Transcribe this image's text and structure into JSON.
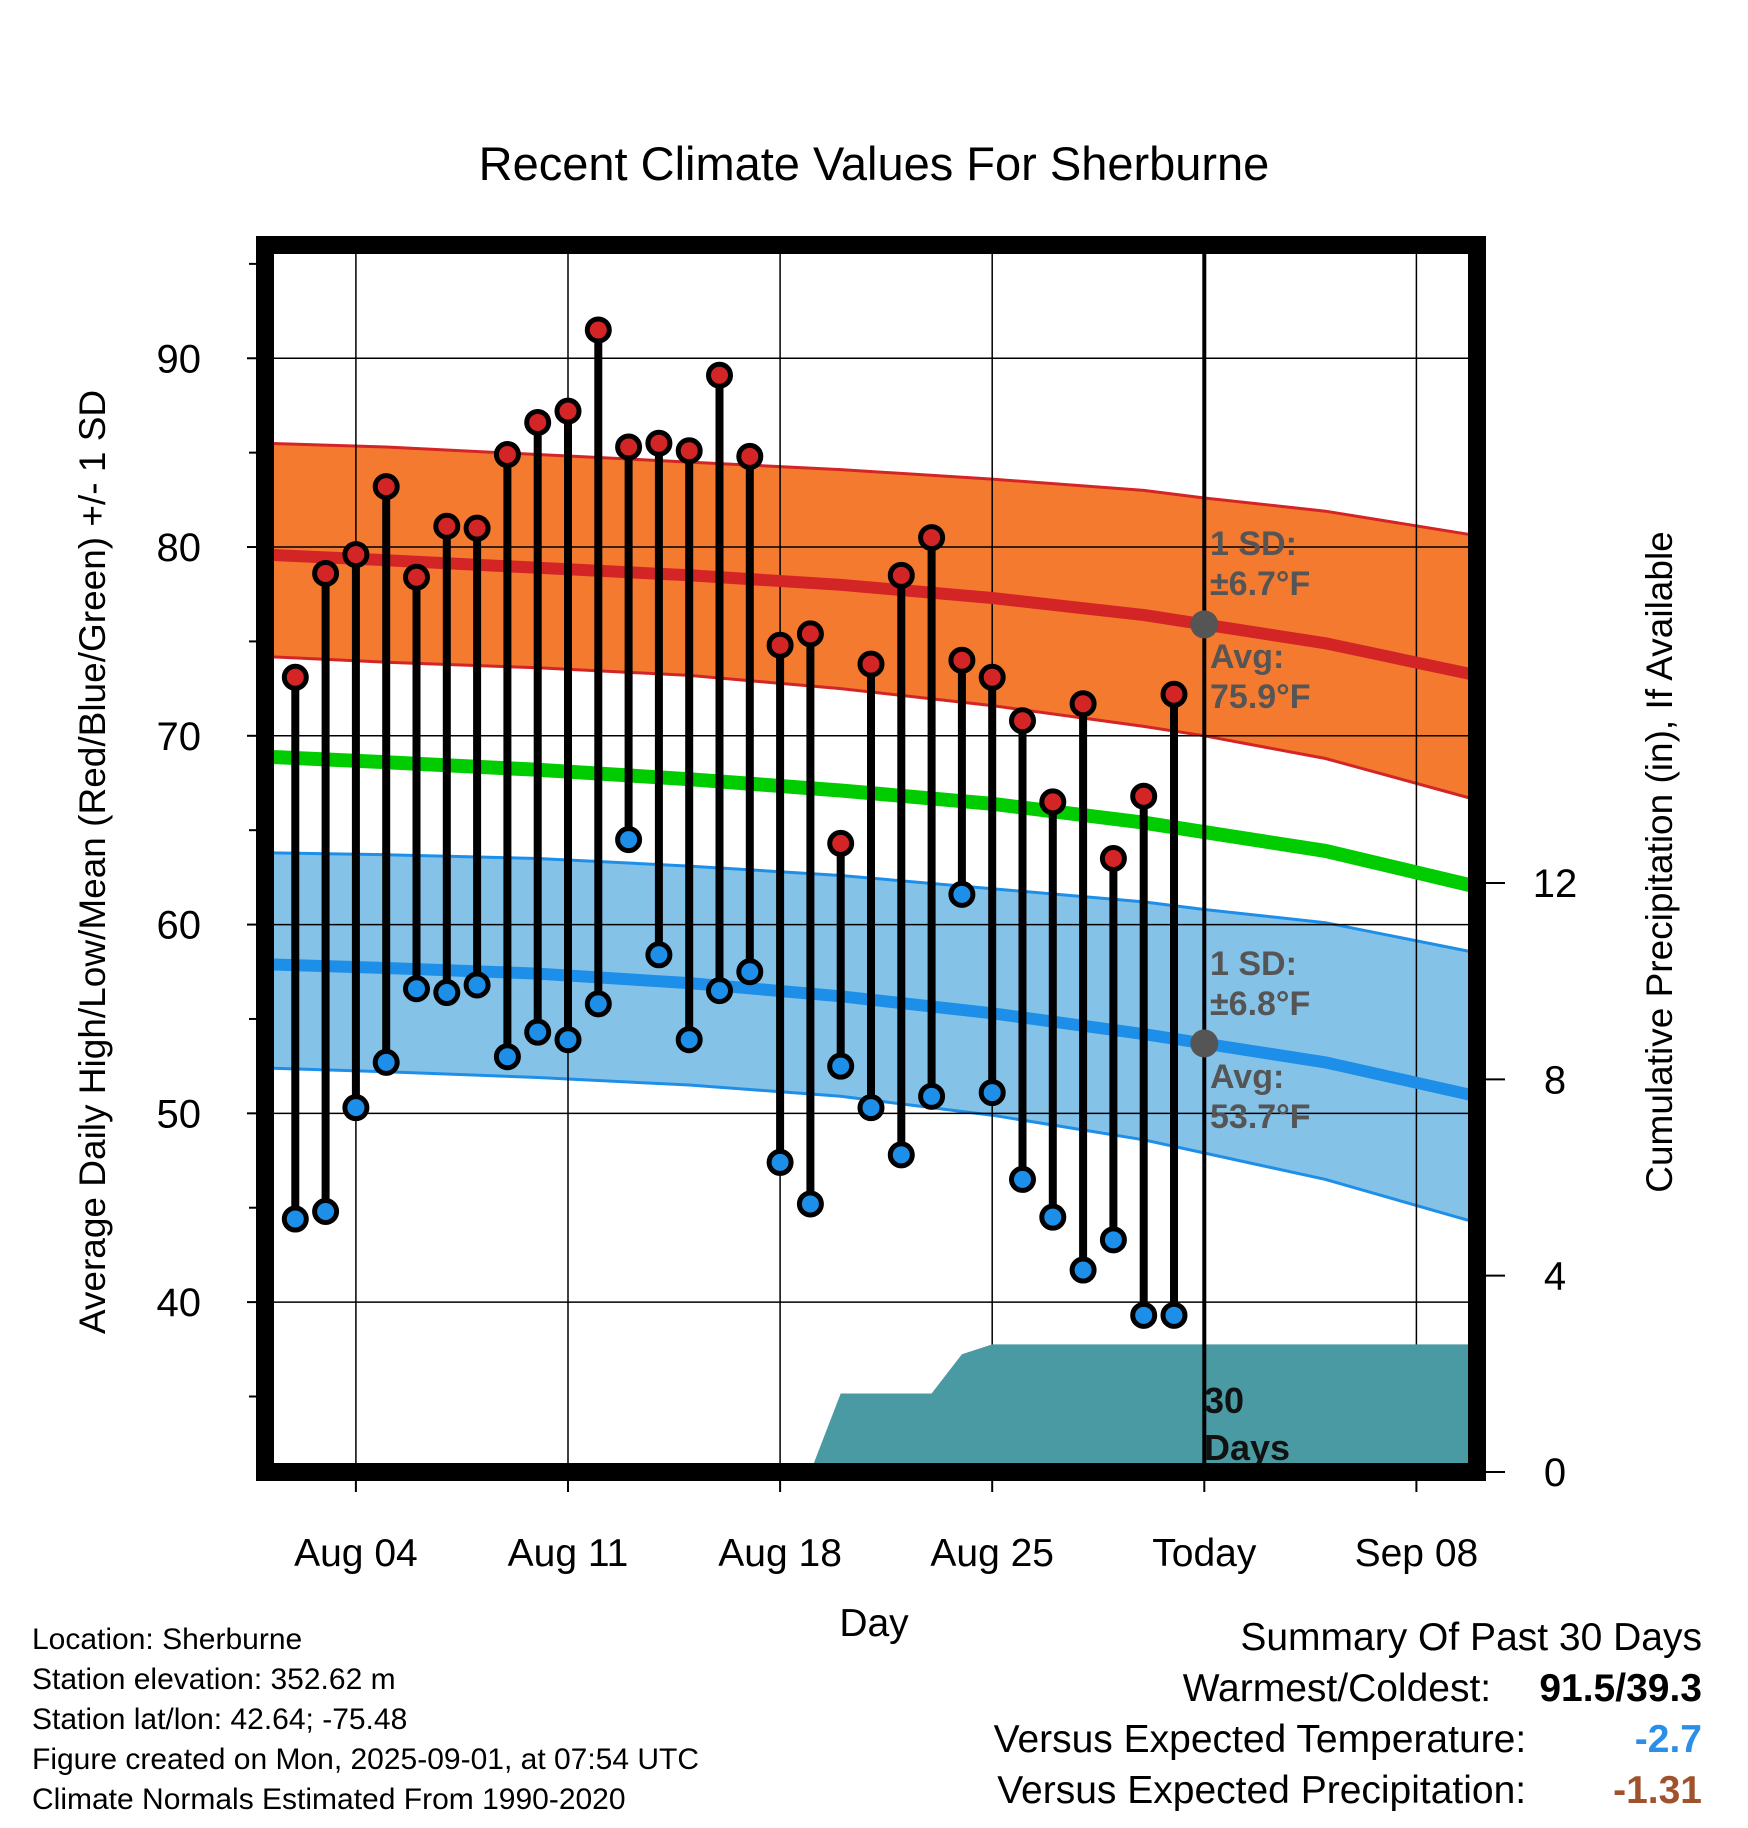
{
  "colors": {
    "high_dot": "#d42526",
    "low_dot": "#1e8fe8",
    "high_band": "#f47a30",
    "high_band_edge": "#d42526",
    "high_avg_line": "#d42526",
    "low_band": "#85c2e8",
    "low_band_edge": "#1e8fe8",
    "low_avg_line": "#1e8fe8",
    "mean_line": "#00cc00",
    "precip_fill": "#4a9aa3",
    "today_marker": "#555555",
    "band_text": "#555555",
    "temp_anomaly": "#2a8fe8",
    "precip_anomaly": "#a0522d"
  },
  "chart_data": {
    "type": "line",
    "title": "Recent Climate Values For Sherburne",
    "xlabel": "Day",
    "ylabel": "Average Daily High/Low/Mean (Red/Blue/Green) +/- 1 SD",
    "y2label": "Cumulative Precipitation (in), If Available",
    "xlim": [
      "2025-08-01",
      "2025-09-10"
    ],
    "ylim": [
      31,
      96
    ],
    "y2lim": [
      0,
      25
    ],
    "grid": true,
    "x_ticks": [
      {
        "date": "2025-08-04",
        "label": "Aug 04"
      },
      {
        "date": "2025-08-11",
        "label": "Aug 11"
      },
      {
        "date": "2025-08-18",
        "label": "Aug 18"
      },
      {
        "date": "2025-08-25",
        "label": "Aug 25"
      },
      {
        "date": "2025-09-01",
        "label": "Today"
      },
      {
        "date": "2025-09-08",
        "label": "Sep 08"
      }
    ],
    "y_ticks": [
      40,
      50,
      60,
      70,
      80,
      90
    ],
    "y_minor_ticks": [
      35,
      45,
      55,
      65,
      75,
      85,
      95
    ],
    "y2_ticks": [
      0,
      4,
      8,
      12
    ],
    "today": "2025-09-01",
    "daily": {
      "dates": [
        "2025-08-02",
        "2025-08-03",
        "2025-08-04",
        "2025-08-05",
        "2025-08-06",
        "2025-08-07",
        "2025-08-08",
        "2025-08-09",
        "2025-08-10",
        "2025-08-11",
        "2025-08-12",
        "2025-08-13",
        "2025-08-14",
        "2025-08-15",
        "2025-08-16",
        "2025-08-17",
        "2025-08-18",
        "2025-08-19",
        "2025-08-20",
        "2025-08-21",
        "2025-08-22",
        "2025-08-23",
        "2025-08-24",
        "2025-08-25",
        "2025-08-26",
        "2025-08-27",
        "2025-08-28",
        "2025-08-29",
        "2025-08-30",
        "2025-08-31"
      ],
      "high": [
        73.1,
        78.6,
        79.6,
        83.2,
        78.4,
        81.1,
        81.0,
        84.9,
        86.6,
        87.2,
        91.5,
        85.3,
        85.5,
        85.1,
        89.1,
        84.8,
        74.8,
        75.4,
        64.3,
        73.8,
        78.5,
        80.5,
        74.0,
        73.1,
        70.8,
        66.5,
        71.7,
        63.5,
        66.8,
        72.2
      ],
      "low": [
        44.4,
        44.8,
        50.3,
        52.7,
        56.6,
        56.4,
        56.8,
        53.0,
        54.3,
        53.9,
        55.8,
        64.5,
        58.4,
        53.9,
        56.5,
        57.5,
        47.4,
        45.2,
        52.5,
        50.3,
        47.8,
        50.9,
        61.6,
        51.1,
        46.5,
        44.5,
        41.7,
        43.3,
        39.3,
        39.3
      ]
    },
    "normals": {
      "dates": [
        "2025-08-01",
        "2025-08-05",
        "2025-08-10",
        "2025-08-15",
        "2025-08-20",
        "2025-08-25",
        "2025-08-30",
        "2025-09-01",
        "2025-09-05",
        "2025-09-10"
      ],
      "high_avg": [
        79.6,
        79.3,
        78.9,
        78.5,
        78.0,
        77.3,
        76.4,
        75.9,
        74.9,
        73.2
      ],
      "high_upper": [
        85.5,
        85.3,
        84.9,
        84.5,
        84.1,
        83.6,
        83.0,
        82.6,
        81.9,
        80.6
      ],
      "high_lower": [
        74.2,
        73.9,
        73.6,
        73.2,
        72.5,
        71.6,
        70.5,
        70.0,
        68.8,
        66.6
      ],
      "mean": [
        68.9,
        68.6,
        68.2,
        67.7,
        67.1,
        66.4,
        65.4,
        64.9,
        63.9,
        62.0
      ],
      "low_avg": [
        57.9,
        57.7,
        57.4,
        56.9,
        56.2,
        55.3,
        54.2,
        53.7,
        52.7,
        50.9
      ],
      "low_upper": [
        63.8,
        63.7,
        63.5,
        63.1,
        62.6,
        61.9,
        61.2,
        60.8,
        60.1,
        58.5
      ],
      "low_lower": [
        52.4,
        52.2,
        51.9,
        51.5,
        50.9,
        49.9,
        48.6,
        47.9,
        46.5,
        44.2
      ]
    },
    "precip": {
      "dates": [
        "2025-08-19",
        "2025-08-20",
        "2025-08-21",
        "2025-08-22",
        "2025-08-23",
        "2025-08-24",
        "2025-08-25",
        "2025-08-28",
        "2025-08-29",
        "2025-09-01",
        "2025-09-10"
      ],
      "cumulative": [
        0.0,
        1.6,
        1.6,
        1.6,
        1.6,
        2.4,
        2.6,
        2.6,
        2.6,
        2.6,
        2.6
      ]
    },
    "annotations": {
      "high_sd_label": "1 SD:",
      "high_sd_value": "±6.7°F",
      "high_avg_label": "Avg:",
      "high_avg_value": "75.9°F",
      "low_sd_label": "1 SD:",
      "low_sd_value": "±6.8°F",
      "low_avg_label": "Avg:",
      "low_avg_value": "53.7°F",
      "days_label_1": "30",
      "days_label_2": "Days"
    }
  },
  "footer": {
    "location": "Location: Sherburne",
    "elevation": "Station elevation: 352.62 m",
    "latlon": "Station lat/lon: 42.64; -75.48",
    "created": "Figure created on Mon, 2025-09-01, at 07:54 UTC",
    "normals": "Climate Normals Estimated From 1990-2020"
  },
  "summary": {
    "title": "Summary Of Past 30 Days",
    "warm_cold_label": "Warmest/Coldest:",
    "warm_cold_value": "91.5/39.3",
    "temp_label": "Versus Expected Temperature:",
    "temp_value": "-2.7",
    "precip_label": "Versus Expected Precipitation:",
    "precip_value": "-1.31"
  }
}
